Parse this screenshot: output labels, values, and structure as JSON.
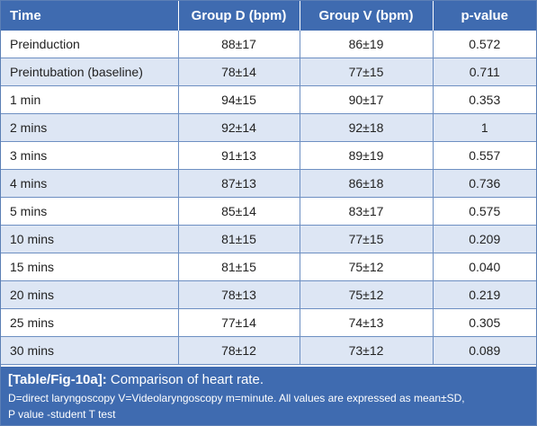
{
  "table": {
    "headers": [
      "Time",
      "Group D (bpm)",
      "Group V (bpm)",
      "p-value"
    ],
    "rows": [
      [
        "Preinduction",
        "88±17",
        "86±19",
        "0.572"
      ],
      [
        "Preintubation (baseline)",
        "78±14",
        "77±15",
        "0.711"
      ],
      [
        "1 min",
        "94±15",
        "90±17",
        "0.353"
      ],
      [
        "2 mins",
        "92±14",
        "92±18",
        "1"
      ],
      [
        "3 mins",
        "91±13",
        "89±19",
        "0.557"
      ],
      [
        "4 mins",
        "87±13",
        "86±18",
        "0.736"
      ],
      [
        "5 mins",
        "85±14",
        "83±17",
        "0.575"
      ],
      [
        "10 mins",
        "81±15",
        "77±15",
        "0.209"
      ],
      [
        "15 mins",
        "81±15",
        "75±12",
        "0.040"
      ],
      [
        "20 mins",
        "78±13",
        "75±12",
        "0.219"
      ],
      [
        "25 mins",
        "77±14",
        "74±13",
        "0.305"
      ],
      [
        "30 mins",
        "78±12",
        "73±12",
        "0.089"
      ]
    ]
  },
  "caption": {
    "ref": "[Table/Fig-10a]:",
    "title": "Comparison of heart rate.",
    "note_line1": "D=direct laryngoscopy V=Videolaryngoscopy m=minute. All values are expressed as mean±SD,",
    "note_line2": "P value -student T test"
  },
  "colors": {
    "header_bg": "#3f6bb0",
    "stripe": "#dde6f4",
    "border": "#6d8fc2"
  }
}
